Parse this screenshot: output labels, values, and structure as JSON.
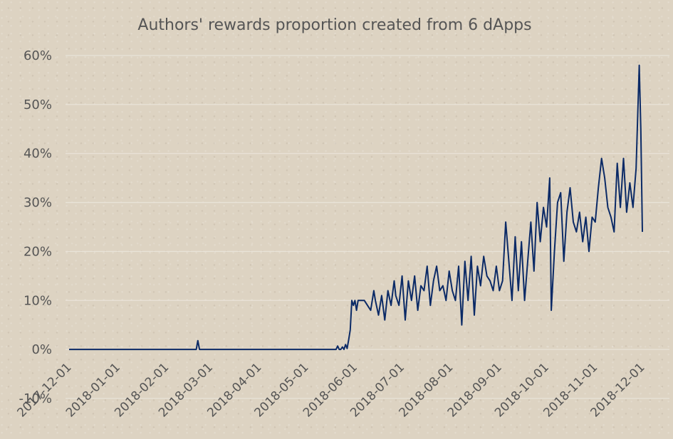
{
  "chart_data": {
    "type": "line",
    "title": "Authors' rewards proportion created from 6 dApps",
    "xlabel": "",
    "ylabel": "",
    "ylim": [
      -0.1,
      0.6
    ],
    "y_ticks": [
      {
        "value": -0.1,
        "label": "-10%"
      },
      {
        "value": 0.0,
        "label": "0%"
      },
      {
        "value": 0.1,
        "label": "10%"
      },
      {
        "value": 0.2,
        "label": "20%"
      },
      {
        "value": 0.3,
        "label": "30%"
      },
      {
        "value": 0.4,
        "label": "40%"
      },
      {
        "value": 0.5,
        "label": "50%"
      },
      {
        "value": 0.6,
        "label": "60%"
      }
    ],
    "x_ticks": [
      "2017-12-01",
      "2018-01-01",
      "2018-02-01",
      "2018-03-01",
      "2018-04-01",
      "2018-05-01",
      "2018-06-01",
      "2018-07-01",
      "2018-08-01",
      "2018-09-01",
      "2018-10-01",
      "2018-11-01",
      "2018-12-01"
    ],
    "xlim": [
      "2017-12-01",
      "2018-12-01"
    ],
    "grid": true,
    "legend": "none",
    "series": [
      {
        "color": "#0b2a66",
        "x": [
          "2017-12-01",
          "2018-02-20",
          "2018-02-21",
          "2018-02-22",
          "2018-02-23",
          "2018-05-20",
          "2018-05-21",
          "2018-05-22",
          "2018-05-23",
          "2018-05-24",
          "2018-05-25",
          "2018-05-26",
          "2018-05-27",
          "2018-05-28",
          "2018-05-29",
          "2018-05-30",
          "2018-05-31",
          "2018-06-01",
          "2018-06-02",
          "2018-06-03",
          "2018-06-05",
          "2018-06-07",
          "2018-06-09",
          "2018-06-11",
          "2018-06-13",
          "2018-06-14",
          "2018-06-16",
          "2018-06-18",
          "2018-06-20",
          "2018-06-22",
          "2018-06-24",
          "2018-06-26",
          "2018-06-27",
          "2018-06-29",
          "2018-07-01",
          "2018-07-03",
          "2018-07-05",
          "2018-07-07",
          "2018-07-09",
          "2018-07-11",
          "2018-07-13",
          "2018-07-15",
          "2018-07-17",
          "2018-07-19",
          "2018-07-21",
          "2018-07-23",
          "2018-07-25",
          "2018-07-27",
          "2018-07-29",
          "2018-07-31",
          "2018-08-02",
          "2018-08-04",
          "2018-08-06",
          "2018-08-08",
          "2018-08-10",
          "2018-08-12",
          "2018-08-14",
          "2018-08-16",
          "2018-08-18",
          "2018-08-20",
          "2018-08-22",
          "2018-08-24",
          "2018-08-26",
          "2018-08-28",
          "2018-08-30",
          "2018-09-01",
          "2018-09-03",
          "2018-09-05",
          "2018-09-07",
          "2018-09-09",
          "2018-09-11",
          "2018-09-13",
          "2018-09-15",
          "2018-09-17",
          "2018-09-19",
          "2018-09-21",
          "2018-09-23",
          "2018-09-25",
          "2018-09-27",
          "2018-09-29",
          "2018-10-01",
          "2018-10-02",
          "2018-10-03",
          "2018-10-04",
          "2018-10-06",
          "2018-10-08",
          "2018-10-10",
          "2018-10-12",
          "2018-10-14",
          "2018-10-16",
          "2018-10-18",
          "2018-10-20",
          "2018-10-22",
          "2018-10-24",
          "2018-10-26",
          "2018-10-28",
          "2018-10-30",
          "2018-11-01",
          "2018-11-03",
          "2018-11-05",
          "2018-11-07",
          "2018-11-09",
          "2018-11-11",
          "2018-11-13",
          "2018-11-15",
          "2018-11-17",
          "2018-11-19",
          "2018-11-21",
          "2018-11-23",
          "2018-11-25",
          "2018-11-27",
          "2018-11-29",
          "2018-11-30",
          "2018-12-01"
        ],
        "y": [
          0.0,
          0.0,
          0.018,
          0.0,
          0.0,
          0.0,
          0.007,
          0.0,
          0.0,
          0.005,
          0.0,
          0.01,
          0.002,
          0.02,
          0.04,
          0.1,
          0.09,
          0.1,
          0.08,
          0.1,
          0.1,
          0.1,
          0.09,
          0.08,
          0.12,
          0.1,
          0.07,
          0.11,
          0.06,
          0.12,
          0.09,
          0.14,
          0.11,
          0.09,
          0.15,
          0.06,
          0.14,
          0.1,
          0.15,
          0.08,
          0.13,
          0.12,
          0.17,
          0.09,
          0.14,
          0.17,
          0.12,
          0.13,
          0.1,
          0.16,
          0.12,
          0.1,
          0.17,
          0.05,
          0.18,
          0.1,
          0.19,
          0.07,
          0.17,
          0.13,
          0.19,
          0.15,
          0.14,
          0.12,
          0.17,
          0.12,
          0.14,
          0.26,
          0.18,
          0.1,
          0.23,
          0.12,
          0.22,
          0.1,
          0.18,
          0.26,
          0.16,
          0.3,
          0.22,
          0.29,
          0.25,
          0.3,
          0.35,
          0.08,
          0.2,
          0.3,
          0.32,
          0.18,
          0.28,
          0.33,
          0.26,
          0.24,
          0.28,
          0.22,
          0.27,
          0.2,
          0.27,
          0.26,
          0.33,
          0.39,
          0.35,
          0.29,
          0.27,
          0.24,
          0.38,
          0.29,
          0.39,
          0.28,
          0.34,
          0.29,
          0.37,
          0.58,
          0.45,
          0.24
        ]
      }
    ]
  }
}
